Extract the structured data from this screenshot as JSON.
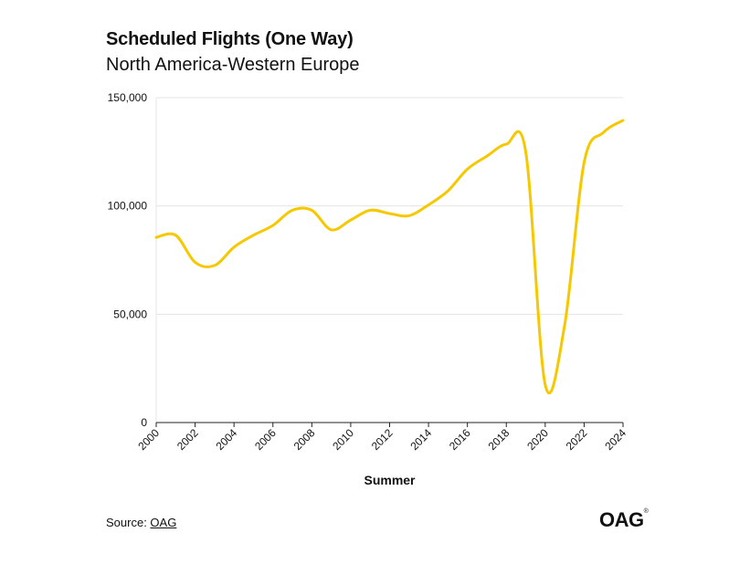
{
  "header": {
    "title": "Scheduled Flights (One Way)",
    "subtitle": "North America-Western Europe"
  },
  "footer": {
    "source_prefix": "Source: ",
    "source_link": "OAG",
    "logo_text": "OAG",
    "logo_mark": "®"
  },
  "colors": {
    "line": "#F5C800",
    "grid": "#e4e4e4",
    "axis": "#222222",
    "text": "#111111"
  },
  "chart_data": {
    "type": "line",
    "title": "Scheduled Flights (One Way)",
    "subtitle": "North America-Western Europe",
    "xlabel": "Summer",
    "ylabel": "",
    "xlim": [
      2000,
      2024
    ],
    "ylim": [
      0,
      150000
    ],
    "grid": true,
    "legend": "none",
    "x_ticks": [
      "2000",
      "2002",
      "2004",
      "2006",
      "2008",
      "2010",
      "2012",
      "2014",
      "2016",
      "2018",
      "2020",
      "2022",
      "2024"
    ],
    "y_ticks": [
      {
        "value": 0,
        "label": "0"
      },
      {
        "value": 50000,
        "label": "50,000"
      },
      {
        "value": 100000,
        "label": "100,000"
      },
      {
        "value": 150000,
        "label": "150,000"
      }
    ],
    "series": [
      {
        "x": [
          2000,
          2001,
          2002,
          2003,
          2004,
          2005,
          2006,
          2007,
          2008,
          2009,
          2010,
          2011,
          2012,
          2013,
          2014,
          2015,
          2016,
          2017,
          2018,
          2019,
          2020,
          2021,
          2022,
          2023,
          2024
        ],
        "values": [
          85500,
          86500,
          74000,
          72500,
          81000,
          86500,
          91000,
          98000,
          98000,
          89000,
          93500,
          98000,
          96500,
          95500,
          100500,
          107000,
          117000,
          123000,
          128500,
          125000,
          17500,
          45000,
          120000,
          134000,
          139500
        ]
      }
    ]
  }
}
